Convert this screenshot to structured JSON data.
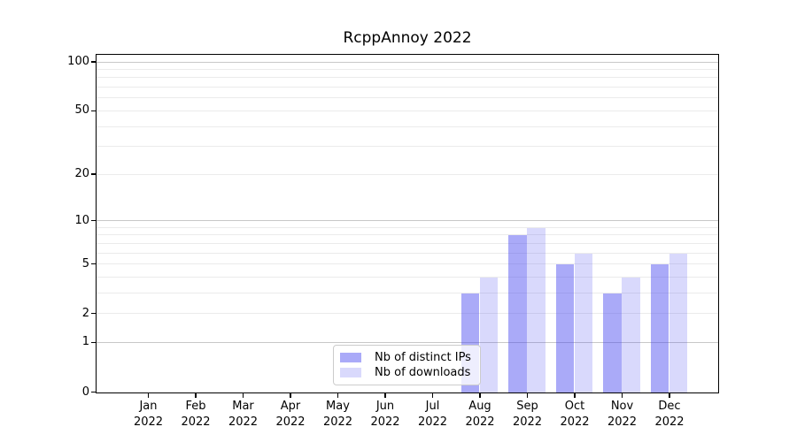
{
  "title": "RcppAnnoy 2022",
  "background_color": "#ffffff",
  "legend": {
    "position": "lower center inside plot",
    "items": [
      {
        "label": "Nb of distinct IPs"
      },
      {
        "label": "Nb of downloads"
      }
    ]
  },
  "chart_data": {
    "type": "bar",
    "title": "RcppAnnoy 2022",
    "categories": [
      "Jan",
      "Feb",
      "Mar",
      "Apr",
      "May",
      "Jun",
      "Jul",
      "Aug",
      "Sep",
      "Oct",
      "Nov",
      "Dec"
    ],
    "category_year": "2022",
    "series": [
      {
        "name": "Nb of distinct IPs",
        "values": [
          0,
          0,
          0,
          0,
          0,
          0,
          0,
          3,
          8,
          5,
          3,
          5
        ],
        "fill": "rgba(66,66,240,0.45)",
        "rendered_color": "#aaaaf8"
      },
      {
        "name": "Nb of downloads",
        "values": [
          0,
          0,
          0,
          0,
          0,
          0,
          0,
          4,
          9,
          6,
          4,
          6
        ],
        "fill": "rgba(66,66,240,0.2)",
        "rendered_color": "#d9d9fb"
      }
    ],
    "xlabel": "",
    "ylabel": "",
    "yscale": "log1p",
    "ylim": [
      0,
      110
    ],
    "yticks": [
      100,
      50,
      20,
      10,
      5,
      2,
      1,
      0
    ],
    "grid": "on",
    "grid_minor_values": [
      2,
      3,
      4,
      5,
      6,
      7,
      8,
      9,
      20,
      30,
      40,
      50,
      60,
      70,
      80,
      90
    ],
    "grid_major_values": [
      1,
      10,
      100
    ],
    "grid_minor_color": "#ebebeb",
    "grid_major_color": "#c8c8c8",
    "spine_color": "#000000"
  }
}
